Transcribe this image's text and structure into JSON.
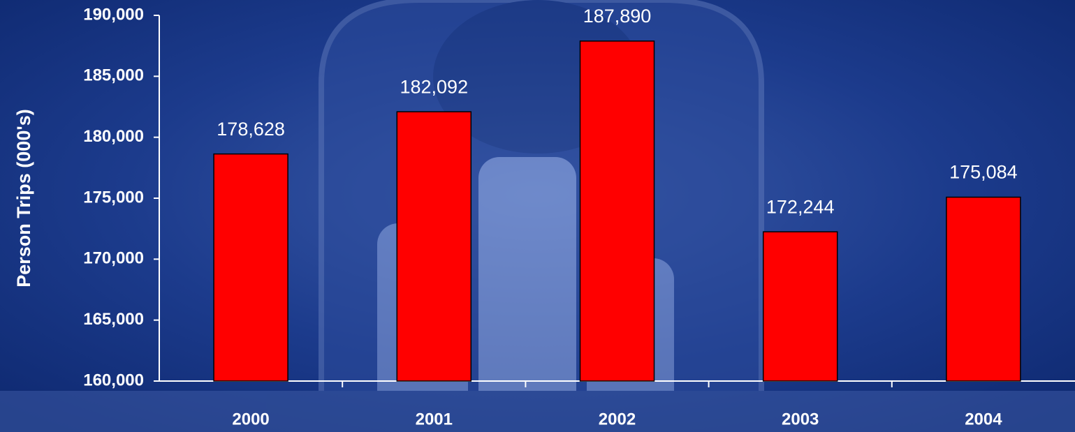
{
  "chart_data": {
    "type": "bar",
    "y_label": "Person Trips (000's)",
    "categories": [
      "2000",
      "2001",
      "2002",
      "2003",
      "2004"
    ],
    "values": [
      178628,
      182092,
      187890,
      172244,
      175084
    ],
    "value_labels": [
      "178,628",
      "182,092",
      "187,890",
      "172,244",
      "175,084"
    ],
    "color": "#ff0000",
    "ylim": [
      160000,
      190000
    ],
    "yticks": [
      {
        "value": 160000,
        "label": "160,000"
      },
      {
        "value": 165000,
        "label": "165,000"
      },
      {
        "value": 170000,
        "label": "170,000"
      },
      {
        "value": 175000,
        "label": "175,000"
      },
      {
        "value": 180000,
        "label": "180,000"
      },
      {
        "value": 185000,
        "label": "185,000"
      },
      {
        "value": 190000,
        "label": "190,000"
      }
    ],
    "grid": false
  }
}
